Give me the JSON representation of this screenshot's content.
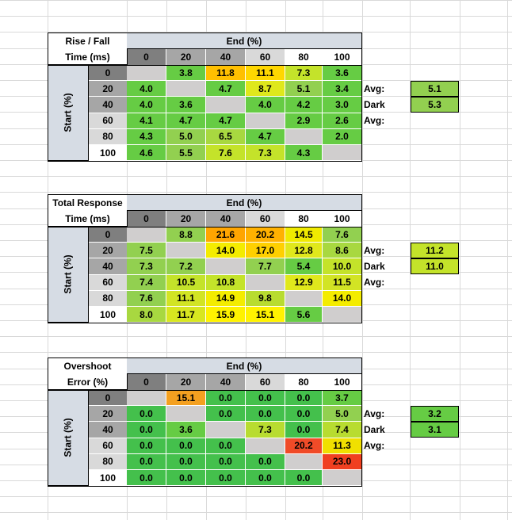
{
  "colors": {
    "diag": "#d0cece",
    "header_light": "#ffffff",
    "header_dark": "#7f7f7f",
    "header_mid": "#a6a6a6",
    "header_light2": "#d9d9d9",
    "axis_bg": "#d6dce4"
  },
  "charts": [
    {
      "title_lines": [
        "Rise / Fall",
        "Time (ms)"
      ],
      "end_label": "End (%)",
      "start_label": "Start (%)",
      "avg_label": "Avg:",
      "avg_value": "5.1",
      "avg_color": "#92d050",
      "dark_avg_label": "Dark Avg:",
      "dark_avg_value": "5.3",
      "dark_avg_color": "#92d050"
    },
    {
      "title_lines": [
        "Total Response",
        "Time (ms)"
      ],
      "end_label": "End (%)",
      "start_label": "Start (%)",
      "avg_label": "Avg:",
      "avg_value": "11.2",
      "avg_color": "#c4e32a",
      "dark_avg_label": "Dark Avg:",
      "dark_avg_value": "11.0",
      "dark_avg_color": "#c4e32a"
    },
    {
      "title_lines": [
        "Overshoot",
        "Error (%)"
      ],
      "end_label": "End (%)",
      "start_label": "Start (%)",
      "avg_label": "Avg:",
      "avg_value": "3.2",
      "avg_color": "#66cc44",
      "dark_avg_label": "Dark Avg:",
      "dark_avg_value": "3.1",
      "dark_avg_color": "#66cc44"
    }
  ],
  "chart_data": [
    {
      "type": "heatmap",
      "title": "Rise / Fall Time (ms)",
      "xlabel": "End (%)",
      "ylabel": "Start (%)",
      "x": [
        "0",
        "20",
        "40",
        "60",
        "80",
        "100"
      ],
      "y": [
        "0",
        "20",
        "40",
        "60",
        "80",
        "100"
      ],
      "values": [
        [
          null,
          3.8,
          11.8,
          11.1,
          7.3,
          3.6
        ],
        [
          4.0,
          null,
          4.7,
          8.7,
          5.1,
          3.4
        ],
        [
          4.0,
          3.6,
          null,
          4.0,
          4.2,
          3.0
        ],
        [
          4.1,
          4.7,
          4.7,
          null,
          2.9,
          2.6
        ],
        [
          4.3,
          5.0,
          6.5,
          4.7,
          null,
          2.0
        ],
        [
          4.6,
          5.5,
          7.6,
          7.3,
          4.3,
          null
        ]
      ],
      "labels": [
        [
          "",
          "3.8",
          "11.8",
          "11.1",
          "7.3",
          "3.6"
        ],
        [
          "4.0",
          "",
          "4.7",
          "8.7",
          "5.1",
          "3.4"
        ],
        [
          "4.0",
          "3.6",
          "",
          "4.0",
          "4.2",
          "3.0"
        ],
        [
          "4.1",
          "4.7",
          "4.7",
          "",
          "2.9",
          "2.6"
        ],
        [
          "4.3",
          "5.0",
          "6.5",
          "4.7",
          "",
          "2.0"
        ],
        [
          "4.6",
          "5.5",
          "7.6",
          "7.3",
          "4.3",
          ""
        ]
      ],
      "cell_colors": [
        [
          "#d0cece",
          "#66cc44",
          "#ffc000",
          "#ffd700",
          "#c4e32a",
          "#66cc44"
        ],
        [
          "#66cc44",
          "#d0cece",
          "#66cc44",
          "#dfe81c",
          "#92d050",
          "#66cc44"
        ],
        [
          "#66cc44",
          "#66cc44",
          "#d0cece",
          "#66cc44",
          "#66cc44",
          "#66cc44"
        ],
        [
          "#66cc44",
          "#66cc44",
          "#66cc44",
          "#d0cece",
          "#66cc44",
          "#66cc44"
        ],
        [
          "#66cc44",
          "#92d050",
          "#a8d840",
          "#66cc44",
          "#d0cece",
          "#66cc44"
        ],
        [
          "#66cc44",
          "#92d050",
          "#c4e32a",
          "#c4e32a",
          "#66cc44",
          "#d0cece"
        ]
      ]
    },
    {
      "type": "heatmap",
      "title": "Total Response Time (ms)",
      "xlabel": "End (%)",
      "ylabel": "Start (%)",
      "x": [
        "0",
        "20",
        "40",
        "60",
        "80",
        "100"
      ],
      "y": [
        "0",
        "20",
        "40",
        "60",
        "80",
        "100"
      ],
      "values": [
        [
          null,
          8.8,
          21.6,
          20.2,
          14.5,
          7.6
        ],
        [
          7.5,
          null,
          14.0,
          17.0,
          12.8,
          8.6
        ],
        [
          7.3,
          7.2,
          null,
          7.7,
          5.4,
          10.0
        ],
        [
          7.4,
          10.5,
          10.8,
          null,
          12.9,
          11.5
        ],
        [
          7.6,
          11.1,
          14.9,
          9.8,
          null,
          14.0
        ],
        [
          8.0,
          11.7,
          15.9,
          15.1,
          5.6,
          null
        ]
      ],
      "labels": [
        [
          "",
          "8.8",
          "21.6",
          "20.2",
          "14.5",
          "7.6"
        ],
        [
          "7.5",
          "",
          "14.0",
          "17.0",
          "12.8",
          "8.6"
        ],
        [
          "7.3",
          "7.2",
          "",
          "7.7",
          "5.4",
          "10.0"
        ],
        [
          "7.4",
          "10.5",
          "10.8",
          "",
          "12.9",
          "11.5"
        ],
        [
          "7.6",
          "11.1",
          "14.9",
          "9.8",
          "",
          "14.0"
        ],
        [
          "8.0",
          "11.7",
          "15.9",
          "15.1",
          "5.6",
          ""
        ]
      ],
      "cell_colors": [
        [
          "#d0cece",
          "#92d050",
          "#ffa500",
          "#ffb100",
          "#f0ea00",
          "#92d050"
        ],
        [
          "#92d050",
          "#d0cece",
          "#f4ec00",
          "#ffd000",
          "#e0e81c",
          "#a8d840"
        ],
        [
          "#92d050",
          "#92d050",
          "#d0cece",
          "#92d050",
          "#66cc44",
          "#c4e32a"
        ],
        [
          "#92d050",
          "#c4e32a",
          "#c4e32a",
          "#d0cece",
          "#e0e81c",
          "#d2e424"
        ],
        [
          "#92d050",
          "#d2e424",
          "#f4ec00",
          "#b8dc30",
          "#d0cece",
          "#f4ec00"
        ],
        [
          "#a8d840",
          "#d8e620",
          "#fff200",
          "#fff200",
          "#66cc44",
          "#d0cece"
        ]
      ]
    },
    {
      "type": "heatmap",
      "title": "Overshoot Error (%)",
      "xlabel": "End (%)",
      "ylabel": "Start (%)",
      "x": [
        "0",
        "20",
        "40",
        "60",
        "80",
        "100"
      ],
      "y": [
        "0",
        "20",
        "40",
        "60",
        "80",
        "100"
      ],
      "values": [
        [
          null,
          15.1,
          0.0,
          0.0,
          0.0,
          3.7
        ],
        [
          0.0,
          null,
          0.0,
          0.0,
          0.0,
          5.0
        ],
        [
          0.0,
          3.6,
          null,
          7.3,
          0.0,
          7.4
        ],
        [
          0.0,
          0.0,
          0.0,
          null,
          20.2,
          11.3
        ],
        [
          0.0,
          0.0,
          0.0,
          0.0,
          null,
          23.0
        ],
        [
          0.0,
          0.0,
          0.0,
          0.0,
          0.0,
          null
        ]
      ],
      "labels": [
        [
          "",
          "15.1",
          "0.0",
          "0.0",
          "0.0",
          "3.7"
        ],
        [
          "0.0",
          "",
          "0.0",
          "0.0",
          "0.0",
          "5.0"
        ],
        [
          "0.0",
          "3.6",
          "",
          "7.3",
          "0.0",
          "7.4"
        ],
        [
          "0.0",
          "0.0",
          "0.0",
          "",
          "20.2",
          "11.3"
        ],
        [
          "0.0",
          "0.0",
          "0.0",
          "0.0",
          "",
          "23.0"
        ],
        [
          "0.0",
          "0.0",
          "0.0",
          "0.0",
          "0.0",
          ""
        ]
      ],
      "cell_colors": [
        [
          "#d0cece",
          "#f4a020",
          "#44c04c",
          "#44c04c",
          "#44c04c",
          "#66cc44"
        ],
        [
          "#44c04c",
          "#d0cece",
          "#44c04c",
          "#44c04c",
          "#44c04c",
          "#92d050"
        ],
        [
          "#44c04c",
          "#66cc44",
          "#d0cece",
          "#b8dc30",
          "#44c04c",
          "#b8dc30"
        ],
        [
          "#44c04c",
          "#44c04c",
          "#44c04c",
          "#d0cece",
          "#f04b28",
          "#f0e000"
        ],
        [
          "#44c04c",
          "#44c04c",
          "#44c04c",
          "#44c04c",
          "#d0cece",
          "#f04020"
        ],
        [
          "#44c04c",
          "#44c04c",
          "#44c04c",
          "#44c04c",
          "#44c04c",
          "#d0cece"
        ]
      ]
    }
  ]
}
